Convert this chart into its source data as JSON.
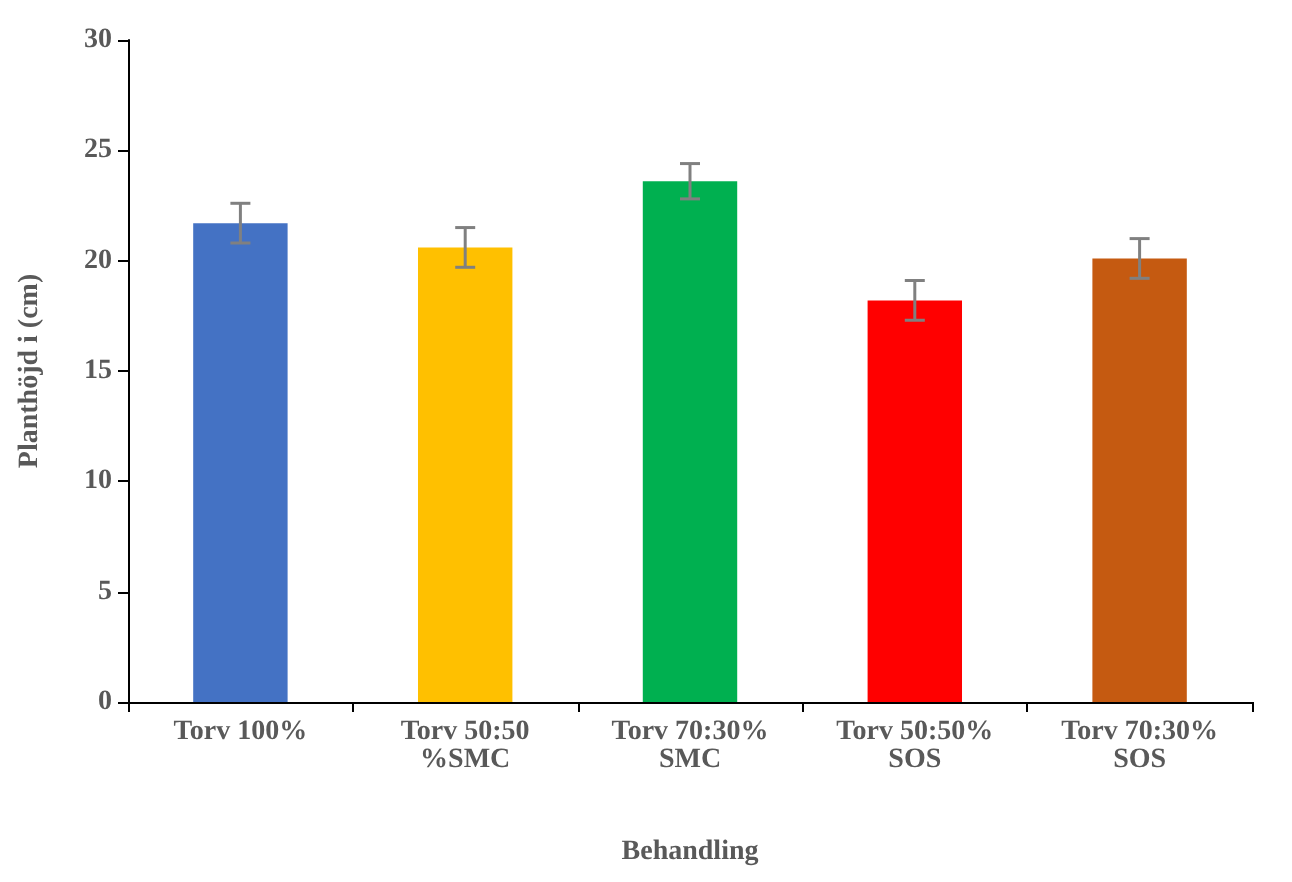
{
  "chart_data": {
    "type": "bar",
    "xlabel": "Behandling",
    "ylabel": "Planthöjd i (cm)",
    "categories": [
      "Torv 100%",
      "Torv 50:50 %SMC",
      "Torv 70:30% SMC",
      "Torv 50:50% SOS",
      "Torv 70:30% SOS"
    ],
    "values": [
      21.7,
      20.6,
      23.6,
      18.2,
      20.1
    ],
    "colors": [
      "#4472c4",
      "#ffc000",
      "#00b050",
      "#ff0000",
      "#c55a11"
    ],
    "errors": [
      0.9,
      0.9,
      0.8,
      0.9,
      0.9
    ],
    "ylim": [
      0,
      30
    ],
    "yticks": [
      0,
      5,
      10,
      15,
      20,
      25,
      30
    ],
    "grid": false
  }
}
